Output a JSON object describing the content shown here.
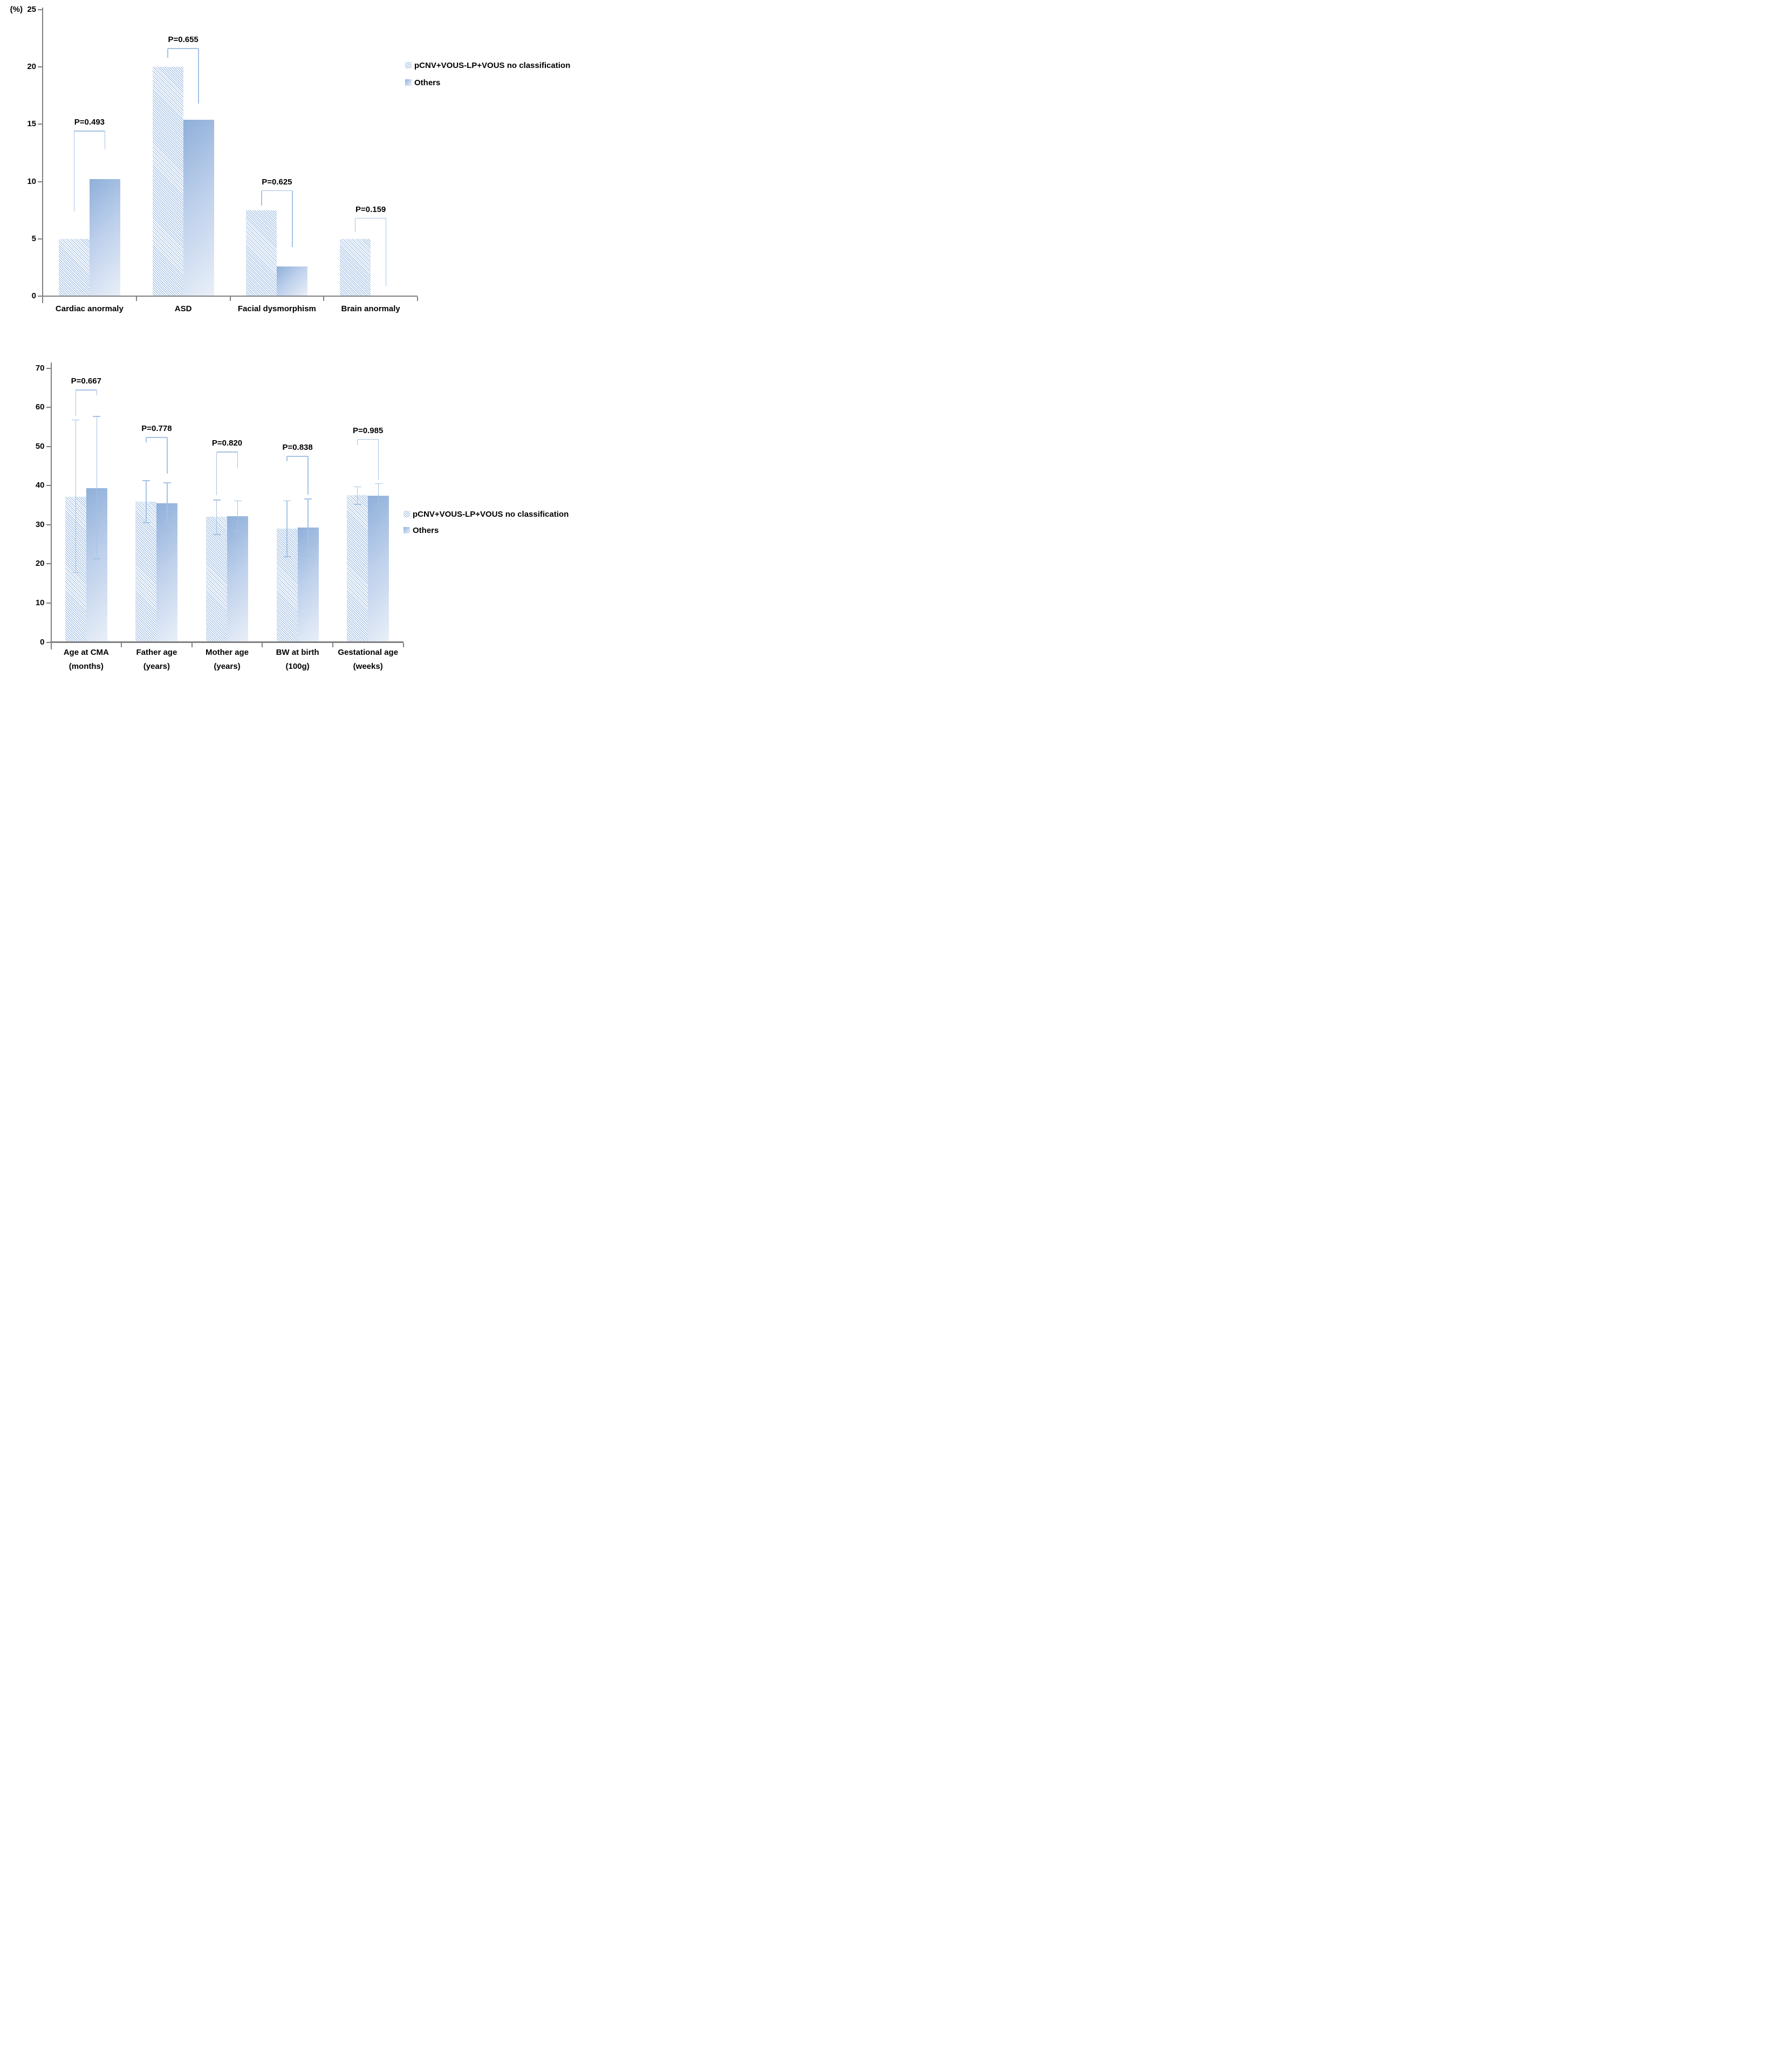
{
  "page": {
    "background": "#ffffff"
  },
  "colors": {
    "series1_hatch": "#8fb2dd",
    "series2_gradient_start": "#8fafd9",
    "series2_gradient_end": "#e9eff8",
    "axis": "#808080",
    "stat_line": "#a4c2e4",
    "text": "#000000"
  },
  "legend": {
    "items": [
      {
        "label": "pCNV+VOUS-LP+VOUS no classification",
        "swatch": "hatch"
      },
      {
        "label": "Others",
        "swatch": "gradient"
      }
    ]
  },
  "chart_data": [
    {
      "type": "bar",
      "title": "",
      "unit_label": "(%)",
      "ylim": [
        0,
        25
      ],
      "yticks": [
        0,
        5,
        10,
        15,
        20,
        25
      ],
      "grid": false,
      "legend_position": "right-top",
      "categories": [
        "Cardiac anormaly",
        "ASD",
        "Facial dysmorphism",
        "Brain anormaly"
      ],
      "series": [
        {
          "name": "pCNV+VOUS-LP+VOUS no classification",
          "style": "hatch",
          "values": [
            5.0,
            20.0,
            7.5,
            5.0
          ]
        },
        {
          "name": "Others",
          "style": "gradient",
          "values": [
            10.2,
            15.4,
            2.6,
            0
          ]
        }
      ],
      "p_labels": [
        "P=0.493",
        "P=0.655",
        "P=0.625",
        "P=0.159"
      ],
      "brackets": [
        {
          "y": 14.4,
          "left_end": 7.4,
          "right_end": 12.8
        },
        {
          "y": 21.6,
          "left_end": 20.8,
          "right_end": 16.8
        },
        {
          "y": 9.2,
          "left_end": 7.9,
          "right_end": 4.3
        },
        {
          "y": 6.8,
          "left_end": 5.6,
          "right_end": 0.9
        }
      ]
    },
    {
      "type": "bar",
      "title": "",
      "unit_label": "",
      "ylim": [
        0,
        70
      ],
      "yticks": [
        0,
        10,
        20,
        30,
        40,
        50,
        60,
        70
      ],
      "grid": false,
      "legend_position": "right-middle",
      "categories": [
        "Age at CMA\n(months)",
        "Father age\n(years)",
        "Mother age\n(years)",
        "BW at birth\n(100g)",
        "Gestational age\n(weeks)"
      ],
      "series": [
        {
          "name": "pCNV+VOUS-LP+VOUS no classification",
          "style": "hatch",
          "values": [
            37.2,
            35.9,
            32.0,
            29.0,
            37.5
          ],
          "errors": [
            [
              17.8,
              56.8
            ],
            [
              30.5,
              41.3
            ],
            [
              27.5,
              36.3
            ],
            [
              21.8,
              36.1
            ],
            [
              35.2,
              39.7
            ]
          ]
        },
        {
          "name": "Others",
          "style": "gradient",
          "values": [
            39.4,
            35.5,
            32.2,
            29.3,
            37.4
          ],
          "errors": [
            [
              21.3,
              57.7
            ],
            [
              30.3,
              40.7
            ],
            [
              28.3,
              36.1
            ],
            [
              22.0,
              36.6
            ],
            [
              34.3,
              40.5
            ]
          ]
        }
      ],
      "p_labels": [
        "P=0.667",
        "P=0.778",
        "P=0.820",
        "P=0.838",
        "P=0.985"
      ],
      "brackets": [
        {
          "y": 64.4,
          "left_end": 57.8,
          "right_end": 63.0
        },
        {
          "y": 52.3,
          "left_end": 51.0,
          "right_end": 43.0
        },
        {
          "y": 48.6,
          "left_end": 37.5,
          "right_end": 44.5
        },
        {
          "y": 47.5,
          "left_end": 46.2,
          "right_end": 37.7
        },
        {
          "y": 51.8,
          "left_end": 50.4,
          "right_end": 41.6
        }
      ]
    }
  ]
}
